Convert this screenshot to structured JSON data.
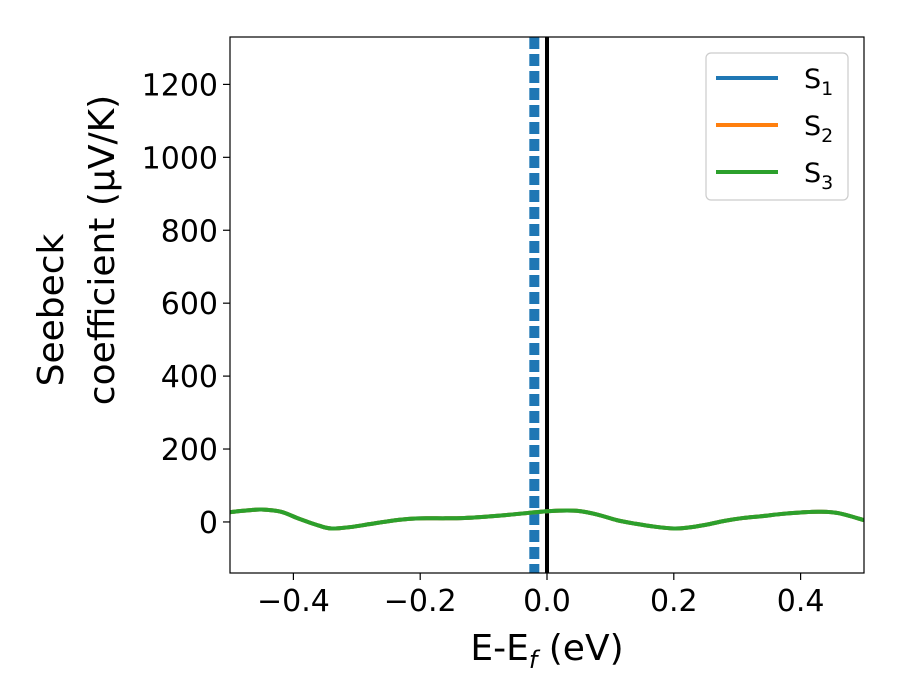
{
  "chart_data": {
    "type": "line",
    "title": "",
    "xlabel": "E-E",
    "xlabel_subscript": "f",
    "xlabel_unit": " (eV)",
    "ylabel_line1": "Seebeck",
    "ylabel_line2": "coefficient  (μV/K)",
    "xlim": [
      -0.5,
      0.5
    ],
    "ylim": [
      -140,
      1330
    ],
    "xticks": [
      -0.4,
      -0.2,
      0.0,
      0.2,
      0.4
    ],
    "xtick_labels": [
      "−0.4",
      "−0.2",
      "0.0",
      "0.2",
      "0.4"
    ],
    "yticks": [
      0,
      200,
      400,
      600,
      800,
      1000,
      1200
    ],
    "ytick_labels": [
      "0",
      "200",
      "400",
      "600",
      "800",
      "1000",
      "1200"
    ],
    "grid": false,
    "legend_position": "top-right",
    "vertical_lines": [
      {
        "x": -0.02,
        "style": "dashed",
        "color": "#1f77b4"
      },
      {
        "x": 0.0,
        "style": "solid",
        "color": "#000000"
      }
    ],
    "x": [
      -0.5,
      -0.47,
      -0.45,
      -0.42,
      -0.39,
      -0.36,
      -0.34,
      -0.31,
      -0.28,
      -0.25,
      -0.22,
      -0.19,
      -0.16,
      -0.13,
      -0.1,
      -0.07,
      -0.04,
      -0.01,
      0.02,
      0.05,
      0.08,
      0.11,
      0.14,
      0.17,
      0.2,
      0.22,
      0.25,
      0.28,
      0.31,
      0.34,
      0.37,
      0.4,
      0.43,
      0.46,
      0.5
    ],
    "series": [
      {
        "name": "S",
        "subscript": "1",
        "color": "#1f77b4",
        "values": [
          27,
          32,
          34,
          28,
          8,
          -10,
          -18,
          -14,
          -6,
          2,
          8,
          10,
          10,
          11,
          14,
          18,
          23,
          28,
          31,
          30,
          20,
          5,
          -5,
          -13,
          -18,
          -16,
          -8,
          3,
          11,
          16,
          22,
          26,
          28,
          24,
          5
        ]
      },
      {
        "name": "S",
        "subscript": "2",
        "color": "#ff7f0e",
        "values": [
          27,
          32,
          34,
          28,
          8,
          -10,
          -18,
          -14,
          -6,
          2,
          8,
          10,
          10,
          11,
          14,
          18,
          23,
          28,
          31,
          30,
          20,
          5,
          -5,
          -13,
          -18,
          -16,
          -8,
          3,
          11,
          16,
          22,
          26,
          28,
          24,
          5
        ]
      },
      {
        "name": "S",
        "subscript": "3",
        "color": "#2ca02c",
        "values": [
          27,
          32,
          34,
          28,
          8,
          -10,
          -18,
          -14,
          -6,
          2,
          8,
          10,
          10,
          11,
          14,
          18,
          23,
          28,
          31,
          30,
          20,
          5,
          -5,
          -13,
          -18,
          -16,
          -8,
          3,
          11,
          16,
          22,
          26,
          28,
          24,
          5
        ]
      }
    ]
  }
}
